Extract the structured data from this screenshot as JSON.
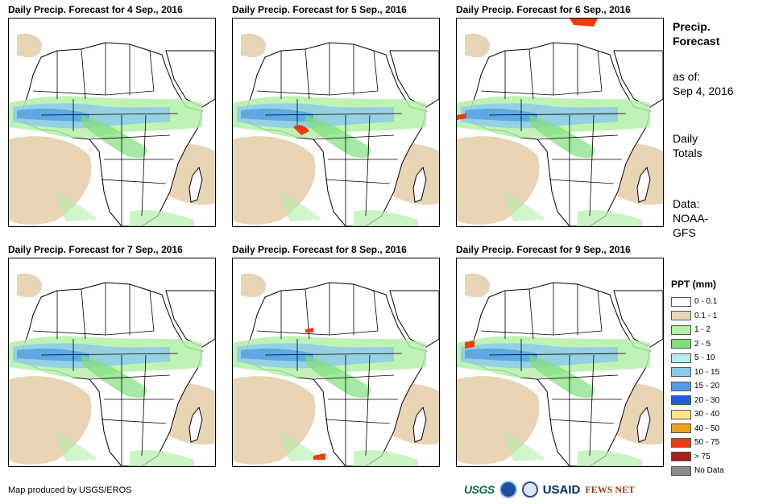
{
  "panels": [
    {
      "title": "Daily Precip. Forecast for 4 Sep., 2016"
    },
    {
      "title": "Daily Precip. Forecast for 5 Sep., 2016"
    },
    {
      "title": "Daily Precip. Forecast for 6 Sep., 2016"
    },
    {
      "title": "Daily Precip. Forecast for 7 Sep., 2016"
    },
    {
      "title": "Daily Precip. Forecast for 8 Sep., 2016"
    },
    {
      "title": "Daily Precip. Forecast for 9 Sep., 2016"
    }
  ],
  "side": {
    "heading_line1": "Precip.",
    "heading_line2": "Forecast",
    "asof_label": "as of:",
    "asof_date": "Sep 4, 2016",
    "totals_line1": "Daily",
    "totals_line2": "Totals",
    "data_label": "Data:",
    "data_line1": "NOAA-",
    "data_line2": "GFS"
  },
  "legend": {
    "title": "PPT (mm)",
    "items": [
      {
        "label": "0 - 0.1",
        "color": "#ffffff"
      },
      {
        "label": "0.1 - 1",
        "color": "#e8d5b5"
      },
      {
        "label": "1 - 2",
        "color": "#b4f0a8"
      },
      {
        "label": "2 - 5",
        "color": "#7fe07a"
      },
      {
        "label": "5 - 10",
        "color": "#b4eef0"
      },
      {
        "label": "10 - 15",
        "color": "#8cc8ec"
      },
      {
        "label": "15 - 20",
        "color": "#4f9ee6"
      },
      {
        "label": "20 - 30",
        "color": "#1f5fd8"
      },
      {
        "label": "30 - 40",
        "color": "#fbe48a"
      },
      {
        "label": "40 - 50",
        "color": "#f0a020"
      },
      {
        "label": "50 - 75",
        "color": "#f03a10"
      },
      {
        "label": "> 75",
        "color": "#a8201c"
      },
      {
        "label": "No Data",
        "color": "#8a8a8a"
      }
    ]
  },
  "footer": {
    "credit": "Map produced by USGS/EROS",
    "logos": {
      "usgs": "USGS",
      "usaid": "USAID",
      "fews": "FEWS NET"
    }
  }
}
